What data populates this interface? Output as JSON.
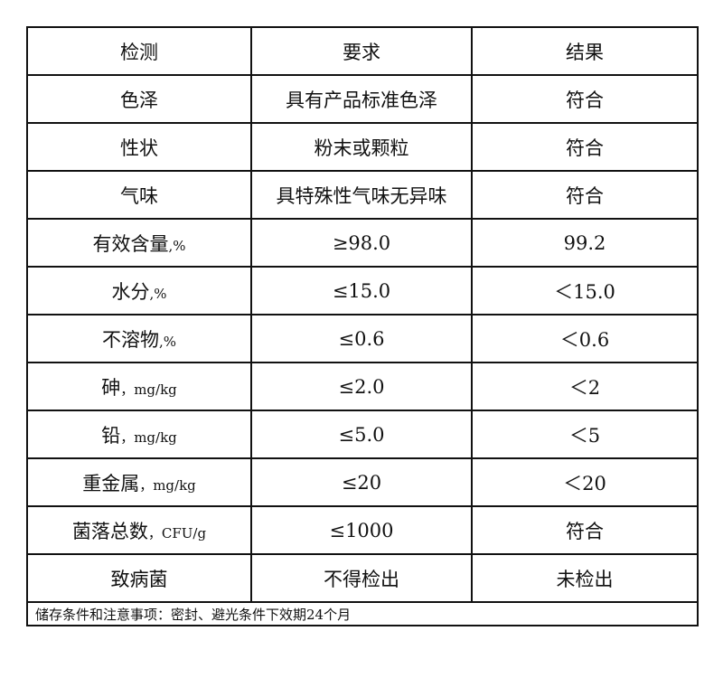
{
  "table": {
    "headers": [
      "检测",
      "要求",
      "结果"
    ],
    "rows": [
      {
        "item": "色泽",
        "unit": "",
        "requirement": "具有产品标准色泽",
        "result": "符合"
      },
      {
        "item": "性状",
        "unit": "",
        "requirement": "粉末或颗粒",
        "result": "符合"
      },
      {
        "item": "气味",
        "unit": "",
        "requirement": "具特殊性气味无异味",
        "result": "符合"
      },
      {
        "item": "有效含量",
        "unit": ",%",
        "requirement": "≥98.0",
        "result": "99.2"
      },
      {
        "item": "水分",
        "unit": ",%",
        "requirement": "≤15.0",
        "result": "＜15.0"
      },
      {
        "item": "不溶物",
        "unit": ",%",
        "requirement": "≤0.6",
        "result": "＜0.6"
      },
      {
        "item": "砷",
        "unit": "，mg/kg",
        "requirement": "≤2.0",
        "result": "＜2"
      },
      {
        "item": "铅",
        "unit": "，mg/kg",
        "requirement": "≤5.0",
        "result": "＜5"
      },
      {
        "item": "重金属",
        "unit": "，mg/kg",
        "requirement": "≤20",
        "result": "＜20"
      },
      {
        "item": "菌落总数",
        "unit": "，CFU/g",
        "requirement": "≤1000",
        "result": "符合"
      },
      {
        "item": "致病菌",
        "unit": "",
        "requirement": "不得检出",
        "result": "未检出"
      }
    ],
    "note": "储存条件和注意事项：密封、避光条件下效期24个月"
  }
}
